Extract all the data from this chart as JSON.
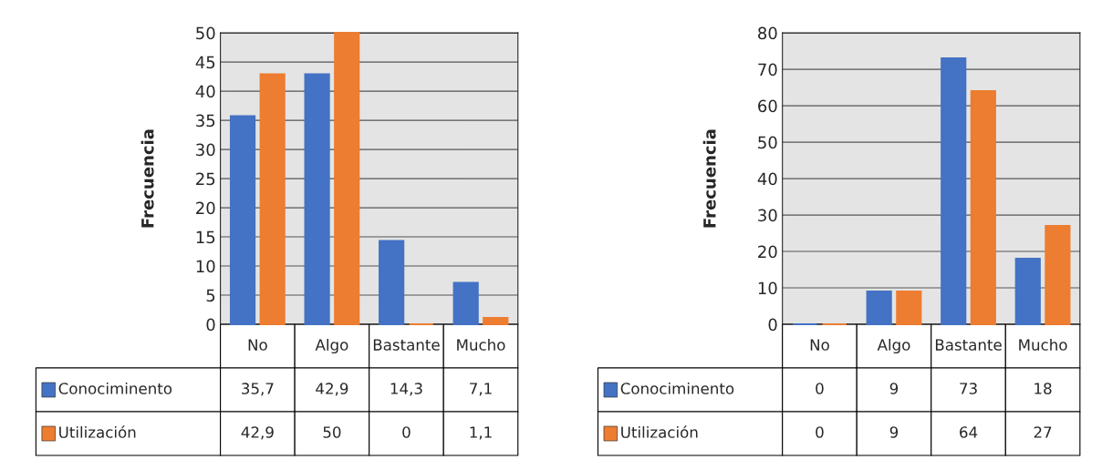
{
  "chart_data": [
    {
      "type": "bar",
      "legend": "bottom left",
      "ylabel": "Frecuencia",
      "categories": [
        "No",
        "Algo",
        "Bastante",
        "Mucho"
      ],
      "ylim": [
        0,
        50
      ],
      "yticks": [
        0,
        5,
        10,
        15,
        20,
        25,
        30,
        35,
        40,
        45,
        50
      ],
      "grid": "y",
      "series": [
        {
          "name": "Conociminento",
          "color": "#4472c4",
          "values": [
            35.7,
            42.9,
            14.3,
            7.1
          ],
          "value_labels": [
            "35,7",
            "42,9",
            "14,3",
            "7,1"
          ]
        },
        {
          "name": "Utilización",
          "color": "#ed7d31",
          "values": [
            42.9,
            50,
            0,
            1.1
          ],
          "value_labels": [
            "42,9",
            "50",
            "0",
            "1,1"
          ]
        }
      ]
    },
    {
      "type": "bar",
      "legend": "bottom left",
      "ylabel": "Frecuencia",
      "categories": [
        "No",
        "Algo",
        "Bastante",
        "Mucho"
      ],
      "ylim": [
        0,
        80
      ],
      "yticks": [
        0,
        10,
        20,
        30,
        40,
        50,
        60,
        70,
        80
      ],
      "grid": "y",
      "series": [
        {
          "name": "Conociminento",
          "color": "#4472c4",
          "values": [
            0,
            9,
            73,
            18
          ],
          "value_labels": [
            "0",
            "9",
            "73",
            "18"
          ]
        },
        {
          "name": "Utilización",
          "color": "#ed7d31",
          "values": [
            0,
            9,
            64,
            27
          ],
          "value_labels": [
            "0",
            "9",
            "64",
            "27"
          ]
        }
      ]
    }
  ]
}
